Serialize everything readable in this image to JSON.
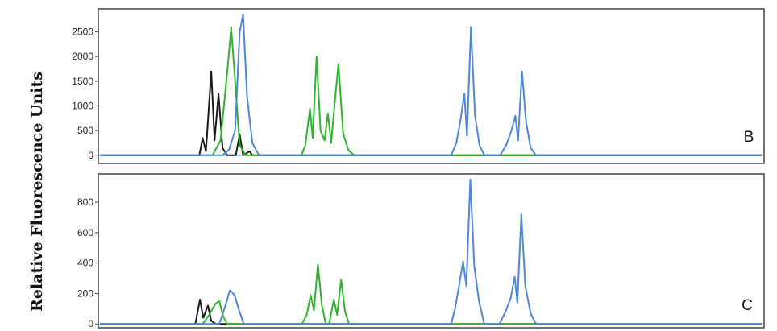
{
  "y_axis_label": "Relative Fluorescence Units",
  "chart_data": [
    {
      "type": "line",
      "panel_label": "B",
      "xlim": [
        0,
        100
      ],
      "ylim": [
        -150,
        2950
      ],
      "ytick_labels": [
        "2500",
        "2000",
        "1500",
        "1000",
        "500",
        "0"
      ],
      "ytick_values": [
        2500,
        2000,
        1500,
        1000,
        500,
        0
      ],
      "grid": false,
      "series": [
        {
          "color": "#1a1a1a",
          "values": [
            [
              0,
              0
            ],
            [
              15.0,
              0
            ],
            [
              15.5,
              350
            ],
            [
              16.0,
              80
            ],
            [
              16.8,
              1700
            ],
            [
              17.3,
              300
            ],
            [
              17.9,
              1250
            ],
            [
              18.5,
              150
            ],
            [
              19.2,
              0
            ],
            [
              20.5,
              0
            ],
            [
              21.1,
              420
            ],
            [
              21.6,
              0
            ],
            [
              22.6,
              80
            ],
            [
              23.0,
              0
            ],
            [
              100,
              0
            ]
          ]
        },
        {
          "color": "#2db52d",
          "values": [
            [
              0,
              0
            ],
            [
              17.0,
              0
            ],
            [
              18.2,
              300
            ],
            [
              19.3,
              1800
            ],
            [
              19.8,
              2600
            ],
            [
              20.4,
              1500
            ],
            [
              21.1,
              200
            ],
            [
              22.0,
              0
            ],
            [
              30.4,
              0
            ],
            [
              31.0,
              200
            ],
            [
              31.7,
              950
            ],
            [
              32.1,
              350
            ],
            [
              32.7,
              2000
            ],
            [
              33.3,
              500
            ],
            [
              33.9,
              300
            ],
            [
              34.4,
              850
            ],
            [
              34.9,
              250
            ],
            [
              35.5,
              1150
            ],
            [
              36.0,
              1850
            ],
            [
              36.7,
              450
            ],
            [
              37.5,
              100
            ],
            [
              38.4,
              0
            ],
            [
              100,
              0
            ]
          ]
        },
        {
          "color": "#4f86d6",
          "values": [
            [
              0,
              0
            ],
            [
              18.5,
              0
            ],
            [
              19.5,
              120
            ],
            [
              20.4,
              500
            ],
            [
              21.1,
              2500
            ],
            [
              21.6,
              2850
            ],
            [
              22.2,
              1200
            ],
            [
              23.0,
              250
            ],
            [
              24.0,
              0
            ],
            [
              53.0,
              0
            ],
            [
              53.8,
              250
            ],
            [
              54.4,
              700
            ],
            [
              55.0,
              1250
            ],
            [
              55.4,
              400
            ],
            [
              56.0,
              2600
            ],
            [
              56.6,
              800
            ],
            [
              57.3,
              200
            ],
            [
              58.0,
              0
            ],
            [
              60.4,
              0
            ],
            [
              61.3,
              200
            ],
            [
              62.1,
              500
            ],
            [
              62.7,
              800
            ],
            [
              63.1,
              300
            ],
            [
              63.7,
              1700
            ],
            [
              64.3,
              700
            ],
            [
              65.0,
              150
            ],
            [
              65.8,
              0
            ],
            [
              100,
              0
            ]
          ]
        }
      ]
    },
    {
      "type": "line",
      "panel_label": "C",
      "xlim": [
        0,
        100
      ],
      "ylim": [
        -20,
        980
      ],
      "ytick_labels": [
        "800",
        "600",
        "400",
        "200",
        "0"
      ],
      "ytick_values": [
        800,
        600,
        400,
        200,
        0
      ],
      "grid": false,
      "series": [
        {
          "color": "#1a1a1a",
          "values": [
            [
              0,
              0
            ],
            [
              14.4,
              0
            ],
            [
              15.1,
              160
            ],
            [
              15.6,
              40
            ],
            [
              16.3,
              120
            ],
            [
              16.8,
              20
            ],
            [
              17.5,
              0
            ],
            [
              100,
              0
            ]
          ]
        },
        {
          "color": "#2db52d",
          "values": [
            [
              0,
              0
            ],
            [
              15.5,
              0
            ],
            [
              16.5,
              60
            ],
            [
              17.4,
              130
            ],
            [
              18.0,
              150
            ],
            [
              18.6,
              50
            ],
            [
              19.2,
              0
            ],
            [
              30.5,
              0
            ],
            [
              31.2,
              60
            ],
            [
              31.8,
              190
            ],
            [
              32.3,
              90
            ],
            [
              32.9,
              390
            ],
            [
              33.5,
              120
            ],
            [
              34.1,
              0
            ],
            [
              34.6,
              0
            ],
            [
              35.3,
              160
            ],
            [
              35.8,
              60
            ],
            [
              36.4,
              290
            ],
            [
              37.0,
              80
            ],
            [
              37.6,
              0
            ],
            [
              100,
              0
            ]
          ]
        },
        {
          "color": "#4f86d6",
          "values": [
            [
              0,
              0
            ],
            [
              18.0,
              0
            ],
            [
              18.8,
              100
            ],
            [
              19.6,
              220
            ],
            [
              20.3,
              190
            ],
            [
              21.0,
              90
            ],
            [
              21.7,
              0
            ],
            [
              53.0,
              0
            ],
            [
              53.6,
              100
            ],
            [
              54.2,
              250
            ],
            [
              54.8,
              410
            ],
            [
              55.3,
              250
            ],
            [
              55.9,
              950
            ],
            [
              56.5,
              380
            ],
            [
              57.2,
              150
            ],
            [
              58.0,
              0
            ],
            [
              60.3,
              0
            ],
            [
              61.2,
              80
            ],
            [
              62.0,
              170
            ],
            [
              62.6,
              310
            ],
            [
              63.0,
              140
            ],
            [
              63.6,
              720
            ],
            [
              64.2,
              250
            ],
            [
              65.0,
              70
            ],
            [
              65.8,
              0
            ],
            [
              100,
              0
            ]
          ]
        }
      ]
    }
  ]
}
